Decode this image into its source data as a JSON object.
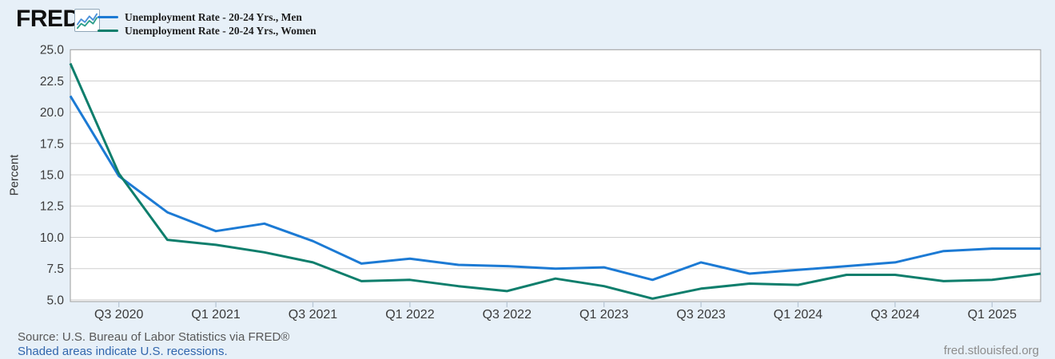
{
  "header": {
    "logo": "FRED",
    "registered": "®",
    "chart_icon": "fred-sparkline-icon"
  },
  "chart_data": {
    "type": "line",
    "title": "",
    "ylabel": "Percent",
    "ylim": [
      4.7,
      25.0
    ],
    "yticks": [
      25.0,
      22.5,
      20.0,
      17.5,
      15.0,
      12.5,
      10.0,
      7.5,
      5.0
    ],
    "grid": "horizontal",
    "legend_position": "top-left",
    "categories": [
      "Q2 2020",
      "Q3 2020",
      "Q4 2020",
      "Q1 2021",
      "Q2 2021",
      "Q3 2021",
      "Q4 2021",
      "Q1 2022",
      "Q2 2022",
      "Q3 2022",
      "Q4 2022",
      "Q1 2023",
      "Q2 2023",
      "Q3 2023",
      "Q4 2023",
      "Q1 2024",
      "Q2 2024",
      "Q3 2024",
      "Q4 2024",
      "Q1 2025",
      "Q2 2025"
    ],
    "x_tick_labels": [
      "Q3 2020",
      "Q1 2021",
      "Q3 2021",
      "Q1 2022",
      "Q3 2022",
      "Q1 2023",
      "Q3 2023",
      "Q1 2024",
      "Q3 2024",
      "Q1 2025"
    ],
    "series": [
      {
        "name": "Unemployment Rate - 20-24 Yrs., Men",
        "color": "#1c7ad4",
        "values": [
          21.3,
          14.9,
          12.0,
          10.5,
          11.1,
          9.7,
          7.9,
          8.3,
          7.8,
          7.7,
          7.5,
          7.6,
          6.6,
          8.0,
          7.1,
          7.4,
          7.7,
          8.0,
          8.9,
          9.1,
          9.1
        ]
      },
      {
        "name": "Unemployment Rate - 20-24 Yrs., Women",
        "color": "#0e7e6c",
        "values": [
          23.9,
          15.1,
          9.8,
          9.4,
          8.8,
          8.0,
          6.5,
          6.6,
          6.1,
          5.7,
          6.7,
          6.1,
          5.1,
          5.9,
          6.3,
          6.2,
          7.0,
          7.0,
          6.5,
          6.6,
          7.1
        ]
      }
    ],
    "colors": {
      "page_background": "#e7f0f8",
      "plot_background": "#ffffff",
      "gridline": "#cfcfcf",
      "plot_border": "#9b9b9b",
      "tick_mark": "#b9c7d5",
      "axis_text": "#3a3a3a"
    }
  },
  "footer": {
    "source": "Source: U.S. Bureau of Labor Statistics via FRED®",
    "recession_note": "Shaded areas indicate U.S. recessions.",
    "site": "fred.stlouisfed.org"
  }
}
